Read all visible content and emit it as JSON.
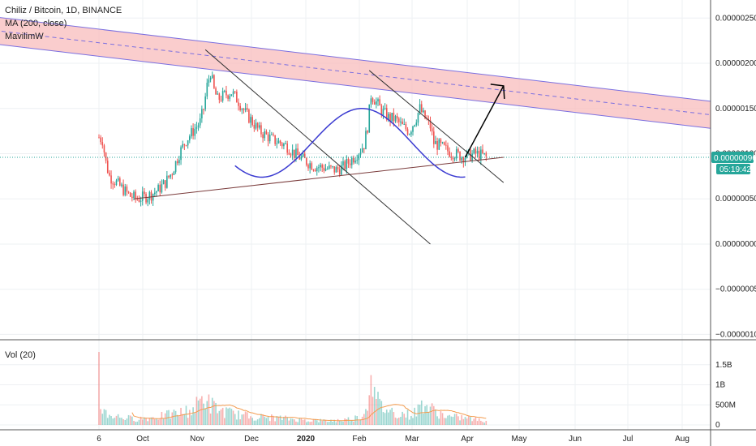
{
  "legend": {
    "title": "Chiliz / Bitcoin, 1D, BINANCE",
    "ma": "MA (200, close)",
    "indicator": "MavilimW"
  },
  "volume_legend": "Vol (20)",
  "price_tag": {
    "price": "0.00000096",
    "countdown": "05:19:42",
    "color": "#26a69a"
  },
  "colors": {
    "up": "#26a69a",
    "down": "#ef5350",
    "channel_fill": "#f8bcbc",
    "channel_line": "#7b6fe0",
    "wave": "#3b3bd1",
    "trend": "#7a3b3b"
  },
  "chart_data": {
    "type": "candlestick",
    "price_axis": {
      "ticks": [
        "0.00000250",
        "0.00000200",
        "0.00000150",
        "0.00000100",
        "0.00000050",
        "0.00000000",
        "−0.00000050",
        "−0.00000100"
      ],
      "range": [
        -1.05e-06,
        2.7e-06
      ]
    },
    "volume_axis": {
      "ticks": [
        "1.5B",
        "1B",
        "500M",
        "0"
      ],
      "range": [
        0,
        1900000000
      ]
    },
    "time_axis": {
      "labels": [
        {
          "text": "6",
          "bold": false
        },
        {
          "text": "Oct",
          "bold": false
        },
        {
          "text": "Nov",
          "bold": false
        },
        {
          "text": "Dec",
          "bold": false
        },
        {
          "text": "2020",
          "bold": true
        },
        {
          "text": "Feb",
          "bold": false
        },
        {
          "text": "Mar",
          "bold": false
        },
        {
          "text": "Apr",
          "bold": false
        },
        {
          "text": "May",
          "bold": false
        },
        {
          "text": "Jun",
          "bold": false
        },
        {
          "text": "Jul",
          "bold": false
        },
        {
          "text": "Aug",
          "bold": false
        }
      ]
    },
    "grid": true,
    "last_price": 9.6e-07,
    "series": [
      {
        "name": "price",
        "keypoints": [
          [
            0,
            1.18e-06
          ],
          [
            2,
            1.15e-06
          ],
          [
            4,
            9e-07
          ],
          [
            6,
            7.5e-07
          ],
          [
            10,
            6.8e-07
          ],
          [
            14,
            6e-07
          ],
          [
            18,
            5.3e-07
          ],
          [
            22,
            5e-07
          ],
          [
            26,
            5.2e-07
          ],
          [
            30,
            5.5e-07
          ],
          [
            34,
            6e-07
          ],
          [
            38,
            6.8e-07
          ],
          [
            42,
            8e-07
          ],
          [
            46,
            1e-06
          ],
          [
            50,
            1.15e-06
          ],
          [
            54,
            1.25e-06
          ],
          [
            58,
            1.35e-06
          ],
          [
            60,
            1.5e-06
          ],
          [
            62,
            1.75e-06
          ],
          [
            64,
            1.9e-06
          ],
          [
            66,
            1.7e-06
          ],
          [
            68,
            1.6e-06
          ],
          [
            72,
            1.65e-06
          ],
          [
            76,
            1.68e-06
          ],
          [
            80,
            1.58e-06
          ],
          [
            84,
            1.45e-06
          ],
          [
            88,
            1.35e-06
          ],
          [
            92,
            1.25e-06
          ],
          [
            96,
            1.2e-06
          ],
          [
            100,
            1.15e-06
          ],
          [
            104,
            1.12e-06
          ],
          [
            108,
            1.08e-06
          ],
          [
            112,
            1e-06
          ],
          [
            116,
            9.5e-07
          ],
          [
            120,
            9e-07
          ],
          [
            124,
            8.6e-07
          ],
          [
            128,
            8.5e-07
          ],
          [
            132,
            8.3e-07
          ],
          [
            136,
            8.2e-07
          ],
          [
            140,
            8.5e-07
          ],
          [
            144,
            9.2e-07
          ],
          [
            148,
            1e-06
          ],
          [
            152,
            1.1e-06
          ],
          [
            154,
            1.3e-06
          ],
          [
            156,
            1.65e-06
          ],
          [
            158,
            1.6e-06
          ],
          [
            162,
            1.48e-06
          ],
          [
            166,
            1.4e-06
          ],
          [
            170,
            1.38e-06
          ],
          [
            174,
            1.3e-06
          ],
          [
            178,
            1.25e-06
          ],
          [
            182,
            1.4e-06
          ],
          [
            184,
            1.5e-06
          ],
          [
            186,
            1.42e-06
          ],
          [
            190,
            1.3e-06
          ],
          [
            192,
            1.12e-06
          ],
          [
            196,
            1.08e-06
          ],
          [
            200,
            1.03e-06
          ],
          [
            204,
            1e-06
          ],
          [
            208,
            9.7e-07
          ],
          [
            212,
            9.8e-07
          ],
          [
            216,
            1e-06
          ],
          [
            220,
            9.8e-07
          ],
          [
            222,
            9.6e-07
          ]
        ]
      },
      {
        "name": "volume",
        "keypoints": [
          [
            0,
            1700000000
          ],
          [
            1,
            600000000
          ],
          [
            2,
            350000000
          ],
          [
            6,
            250000000
          ],
          [
            12,
            200000000
          ],
          [
            20,
            150000000
          ],
          [
            30,
            180000000
          ],
          [
            40,
            250000000
          ],
          [
            46,
            300000000
          ],
          [
            54,
            380000000
          ],
          [
            60,
            700000000
          ],
          [
            64,
            500000000
          ],
          [
            70,
            350000000
          ],
          [
            80,
            250000000
          ],
          [
            90,
            200000000
          ],
          [
            100,
            180000000
          ],
          [
            110,
            150000000
          ],
          [
            120,
            120000000
          ],
          [
            130,
            100000000
          ],
          [
            140,
            120000000
          ],
          [
            150,
            200000000
          ],
          [
            154,
            450000000
          ],
          [
            156,
            1800000000
          ],
          [
            158,
            700000000
          ],
          [
            162,
            450000000
          ],
          [
            170,
            300000000
          ],
          [
            180,
            250000000
          ],
          [
            186,
            550000000
          ],
          [
            190,
            400000000
          ],
          [
            200,
            200000000
          ],
          [
            210,
            180000000
          ],
          [
            218,
            120000000
          ],
          [
            222,
            100000000
          ]
        ]
      }
    ],
    "annotations": [
      {
        "type": "parallel-channel",
        "from": [
          -10,
          2.25e-06
        ],
        "to": [
          320,
          1.5e-06
        ],
        "width": 3e-07
      },
      {
        "type": "trend-line",
        "from": [
          20,
          5e-07
        ],
        "to": [
          232,
          9.6e-07
        ]
      },
      {
        "type": "trend-line",
        "from": [
          61,
          2.15e-06
        ],
        "to": [
          190,
          0.0
        ]
      },
      {
        "type": "trend-line",
        "from": [
          155,
          1.92e-06
        ],
        "to": [
          232,
          6.8e-07
        ]
      },
      {
        "type": "sine-wave",
        "from": 78,
        "to": 210,
        "center": 1.12e-06,
        "amplitude": 3.8e-07
      },
      {
        "type": "arrow",
        "from": [
          210,
          9.6e-07
        ],
        "to": [
          232,
          1.75e-06
        ]
      }
    ]
  }
}
